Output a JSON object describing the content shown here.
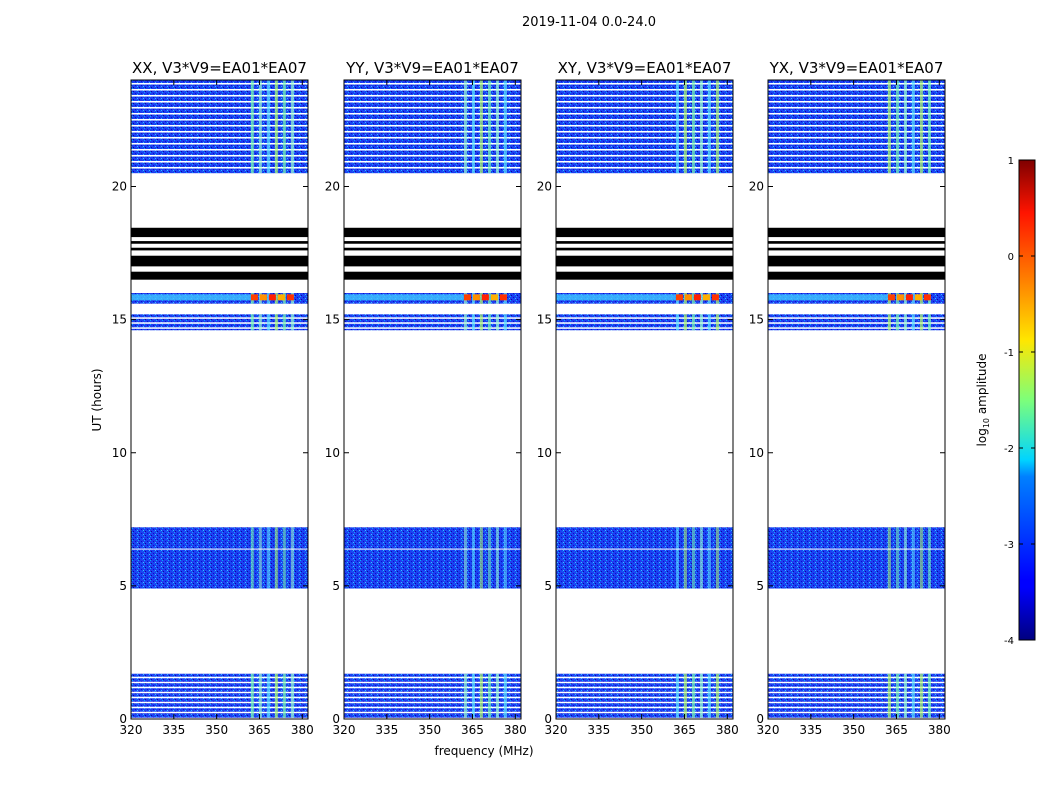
{
  "figure": {
    "suptitle": "2019-11-04 0.0-24.0",
    "xlabel": "frequency (MHz)",
    "ylabel": "UT (hours)"
  },
  "chart_data": {
    "type": "heatmap",
    "title": "2019-11-04 0.0-24.0",
    "xlabel": "frequency (MHz)",
    "ylabel": "UT (hours)",
    "xlim": [
      320,
      382
    ],
    "ylim": [
      0,
      24
    ],
    "xticks": [
      320,
      335,
      350,
      365,
      380
    ],
    "yticks": [
      0,
      5,
      10,
      15,
      20
    ],
    "panels": [
      {
        "title": "XX, V3*V9=EA01*EA07",
        "pol": "XX"
      },
      {
        "title": "YY, V3*V9=EA01*EA07",
        "pol": "YY"
      },
      {
        "title": "XY, V3*V9=EA01*EA07",
        "pol": "XY"
      },
      {
        "title": "YX, V3*V9=EA01*EA07",
        "pol": "YX"
      }
    ],
    "data_blocks_ut_hours": [
      [
        0.05,
        1.7
      ],
      [
        4.9,
        7.2
      ],
      [
        14.6,
        15.2
      ],
      [
        15.6,
        16.0
      ],
      [
        20.5,
        24.0
      ]
    ],
    "flagged_bands_ut_hours": [
      [
        16.5,
        16.8
      ],
      [
        17.0,
        17.4
      ],
      [
        17.6,
        17.7
      ],
      [
        17.85,
        17.95
      ],
      [
        18.1,
        18.45
      ]
    ],
    "rfi_band_mhz": [
      362,
      380
    ],
    "colorbar": {
      "label": "log10 amplitude",
      "label_main": "log",
      "label_sub": "10",
      "label_rest": " amplitude",
      "vmin": -4,
      "vmax": 1,
      "ticks": [
        1,
        0,
        -1,
        -2,
        -3,
        -4
      ],
      "colormap": "jet"
    }
  }
}
